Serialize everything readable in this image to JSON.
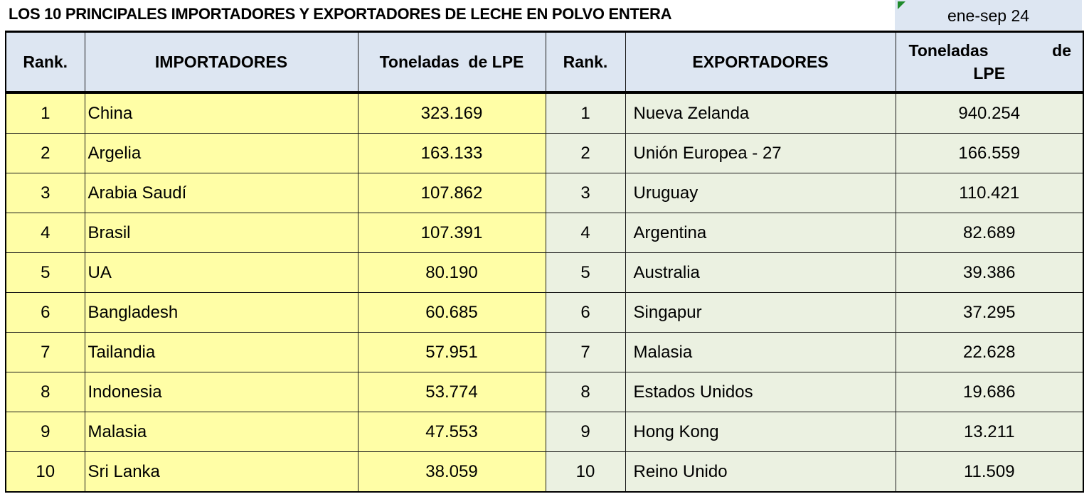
{
  "title": "LOS 10 PRINCIPALES IMPORTADORES Y EXPORTADORES DE LECHE EN POLVO ENTERA",
  "period": "ene-sep 24",
  "headers": {
    "rank": "Rank.",
    "importers": "IMPORTADORES",
    "imp_tonnes": "Toneladas  de LPE",
    "rank2": "Rank.",
    "exporters": "EXPORTADORES",
    "exp_tonnes_a": "Toneladas",
    "exp_tonnes_b": "de",
    "exp_tonnes_c": "LPE"
  },
  "rows": [
    {
      "imp_rank": "1",
      "importer": "China",
      "imp_tonnes": "323.169",
      "exp_rank": "1",
      "exporter": "Nueva Zelanda",
      "exp_tonnes": "940.254"
    },
    {
      "imp_rank": "2",
      "importer": "Argelia",
      "imp_tonnes": "163.133",
      "exp_rank": "2",
      "exporter": "Unión Europea - 27",
      "exp_tonnes": "166.559"
    },
    {
      "imp_rank": "3",
      "importer": "Arabia Saudí",
      "imp_tonnes": "107.862",
      "exp_rank": "3",
      "exporter": "Uruguay",
      "exp_tonnes": "110.421"
    },
    {
      "imp_rank": "4",
      "importer": "Brasil",
      "imp_tonnes": "107.391",
      "exp_rank": "4",
      "exporter": "Argentina",
      "exp_tonnes": "82.689"
    },
    {
      "imp_rank": "5",
      "importer": "UA",
      "imp_tonnes": "80.190",
      "exp_rank": "5",
      "exporter": "Australia",
      "exp_tonnes": "39.386"
    },
    {
      "imp_rank": "6",
      "importer": "Bangladesh",
      "imp_tonnes": "60.685",
      "exp_rank": "6",
      "exporter": "Singapur",
      "exp_tonnes": "37.295"
    },
    {
      "imp_rank": "7",
      "importer": "Tailandia",
      "imp_tonnes": "57.951",
      "exp_rank": "7",
      "exporter": "Malasia",
      "exp_tonnes": "22.628"
    },
    {
      "imp_rank": "8",
      "importer": "Indonesia",
      "imp_tonnes": "53.774",
      "exp_rank": "8",
      "exporter": "Estados Unidos",
      "exp_tonnes": "19.686"
    },
    {
      "imp_rank": "9",
      "importer": "Malasia",
      "imp_tonnes": "47.553",
      "exp_rank": "9",
      "exporter": "Hong Kong",
      "exp_tonnes": "13.211"
    },
    {
      "imp_rank": "10",
      "importer": "Sri Lanka",
      "imp_tonnes": "38.059",
      "exp_rank": "10",
      "exporter": "Reino Unido",
      "exp_tonnes": "11.509"
    }
  ],
  "colors": {
    "header_bg": "#dde6f2",
    "importer_bg": "#fffea6",
    "exporter_bg": "#ebf1e1",
    "marker": "#1e8a2a"
  }
}
